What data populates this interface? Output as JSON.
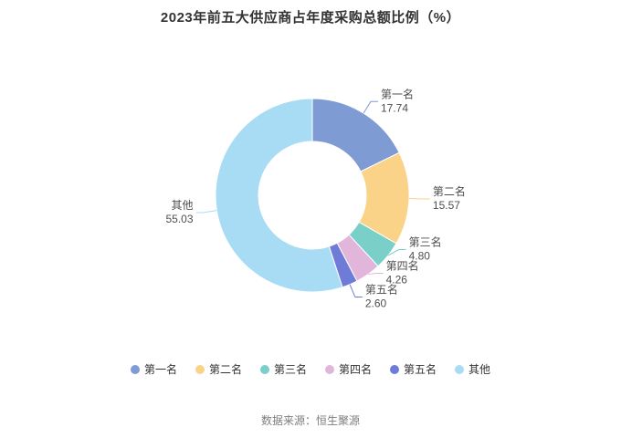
{
  "title": "2023年前五大供应商占年度采购总额比例（%）",
  "footer": "数据来源：恒生聚源",
  "chart_data": {
    "type": "pie",
    "donut": true,
    "title": "2023年前五大供应商占年度采购总额比例（%）",
    "legend_position": "bottom",
    "start_angle_deg": -90,
    "clockwise": true,
    "unit": "%",
    "series": [
      {
        "name": "第一名",
        "value": 17.74,
        "label": "17.74",
        "color": "#7F9BD4"
      },
      {
        "name": "第二名",
        "value": 15.57,
        "label": "15.57",
        "color": "#FAD388"
      },
      {
        "name": "第三名",
        "value": 4.8,
        "label": "4.80",
        "color": "#7ACFC8"
      },
      {
        "name": "第四名",
        "value": 4.26,
        "label": "4.26",
        "color": "#E2B6DA"
      },
      {
        "name": "第五名",
        "value": 2.6,
        "label": "2.60",
        "color": "#6E7CD8"
      },
      {
        "name": "其他",
        "value": 55.03,
        "label": "55.03",
        "color": "#A8DCF4"
      }
    ]
  }
}
